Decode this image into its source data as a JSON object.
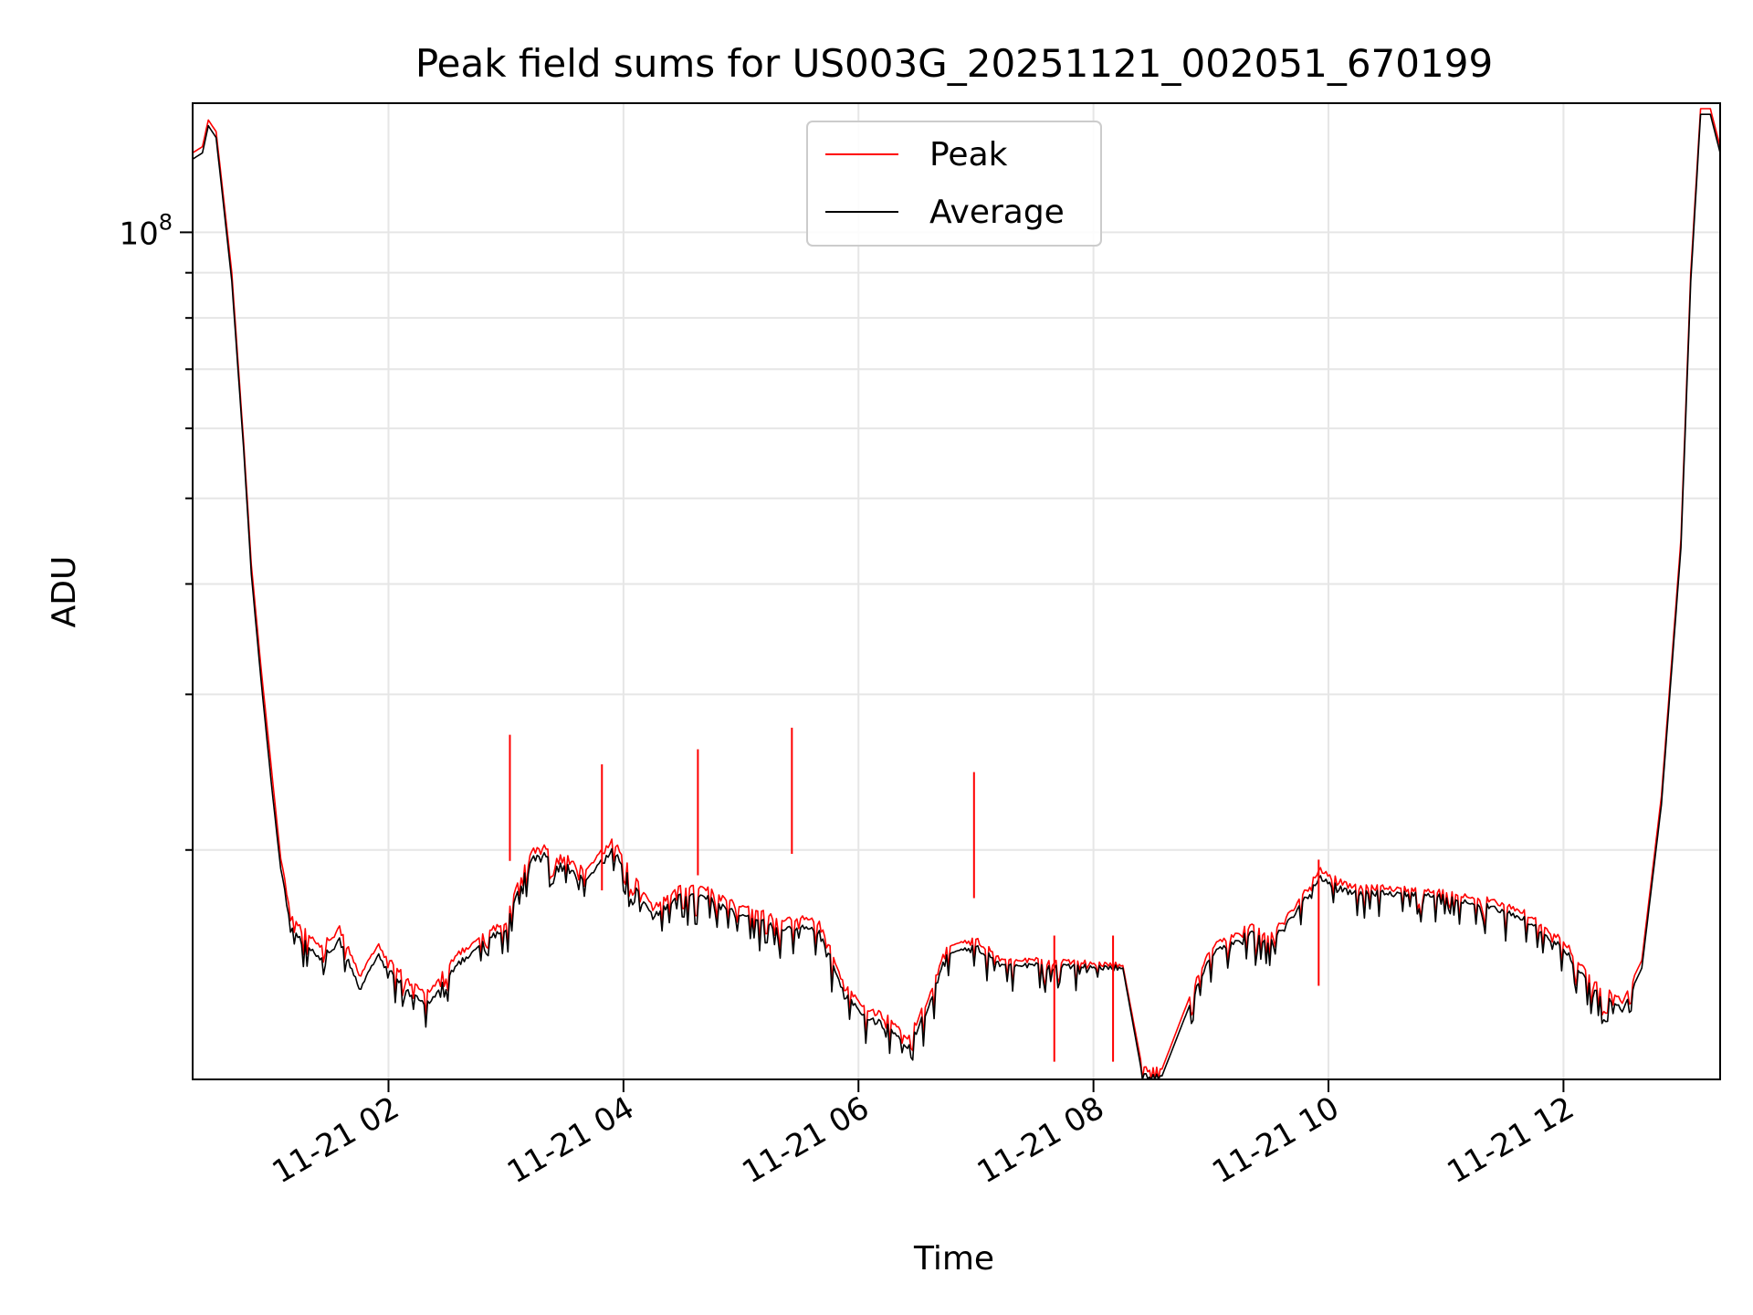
{
  "chart_data": {
    "type": "line",
    "title": "Peak field sums for US003G_20251121_002051_670199",
    "xlabel": "Time",
    "ylabel": "ADU",
    "yscale": "log",
    "xlim": [
      "2025-11-21 00:20",
      "2025-11-21 13:20"
    ],
    "ylim": [
      11000000,
      140000000
    ],
    "x_ticks": [
      {
        "value": "2025-11-21 02:00",
        "label": "11-21 02"
      },
      {
        "value": "2025-11-21 04:00",
        "label": "11-21 04"
      },
      {
        "value": "2025-11-21 06:00",
        "label": "11-21 06"
      },
      {
        "value": "2025-11-21 08:00",
        "label": "11-21 08"
      },
      {
        "value": "2025-11-21 10:00",
        "label": "11-21 10"
      },
      {
        "value": "2025-11-21 12:00",
        "label": "11-21 12"
      }
    ],
    "y_ticks": [
      {
        "value": 100000000,
        "base": "10",
        "exponent": "8"
      }
    ],
    "y_minor_ticks": [
      20000000,
      30000000,
      40000000,
      50000000,
      60000000,
      70000000,
      80000000,
      90000000
    ],
    "grid": true,
    "legend_position": "top-center",
    "series": [
      {
        "name": "Peak",
        "color": "#ff0000",
        "points": [
          [
            "2025-11-21 00:20",
            123000000
          ],
          [
            "2025-11-21 00:25",
            125000000
          ],
          [
            "2025-11-21 00:28",
            134000000
          ],
          [
            "2025-11-21 00:32",
            130000000
          ],
          [
            "2025-11-21 00:40",
            90000000
          ],
          [
            "2025-11-21 00:46",
            58000000
          ],
          [
            "2025-11-21 00:50",
            42000000
          ],
          [
            "2025-11-21 00:55",
            32000000
          ],
          [
            "2025-11-21 01:00",
            25000000
          ],
          [
            "2025-11-21 01:05",
            19500000
          ],
          [
            "2025-11-21 01:10",
            17000000
          ],
          [
            "2025-11-21 01:25",
            15500000
          ],
          [
            "2025-11-21 01:35",
            16300000
          ],
          [
            "2025-11-21 01:45",
            14500000
          ],
          [
            "2025-11-21 01:55",
            15600000
          ],
          [
            "2025-11-21 02:10",
            14200000
          ],
          [
            "2025-11-21 02:20",
            13800000
          ],
          [
            "2025-11-21 02:35",
            15200000
          ],
          [
            "2025-11-21 02:50",
            16200000
          ],
          [
            "2025-11-21 03:00",
            16500000
          ],
          [
            "2025-11-21 03:05",
            18200000
          ],
          [
            "2025-11-21 03:15",
            20200000
          ],
          [
            "2025-11-21 03:25",
            20000000
          ],
          [
            "2025-11-21 03:40",
            19000000
          ],
          [
            "2025-11-21 03:55",
            20500000
          ],
          [
            "2025-11-21 04:00",
            19500000
          ],
          [
            "2025-11-21 04:15",
            17200000
          ],
          [
            "2025-11-21 04:30",
            18200000
          ],
          [
            "2025-11-21 04:45",
            18000000
          ],
          [
            "2025-11-21 05:00",
            17300000
          ],
          [
            "2025-11-21 05:20",
            16700000
          ],
          [
            "2025-11-21 05:40",
            16700000
          ],
          [
            "2025-11-21 05:50",
            14500000
          ],
          [
            "2025-11-21 06:00",
            13400000
          ],
          [
            "2025-11-21 06:15",
            12900000
          ],
          [
            "2025-11-21 06:25",
            12200000
          ],
          [
            "2025-11-21 06:35",
            13500000
          ],
          [
            "2025-11-21 06:45",
            15500000
          ],
          [
            "2025-11-21 07:00",
            15800000
          ],
          [
            "2025-11-21 07:15",
            15000000
          ],
          [
            "2025-11-21 07:40",
            15000000
          ],
          [
            "2025-11-21 08:15",
            14800000
          ],
          [
            "2025-11-21 08:25",
            11300000
          ],
          [
            "2025-11-21 08:35",
            11300000
          ],
          [
            "2025-11-21 08:50",
            13800000
          ],
          [
            "2025-11-21 09:00",
            15500000
          ],
          [
            "2025-11-21 09:20",
            16400000
          ],
          [
            "2025-11-21 09:30",
            16000000
          ],
          [
            "2025-11-21 09:45",
            17500000
          ],
          [
            "2025-11-21 09:55",
            19000000
          ],
          [
            "2025-11-21 10:10",
            18200000
          ],
          [
            "2025-11-21 10:50",
            18000000
          ],
          [
            "2025-11-21 11:20",
            17600000
          ],
          [
            "2025-11-21 11:40",
            17000000
          ],
          [
            "2025-11-21 12:00",
            15800000
          ],
          [
            "2025-11-21 12:15",
            14200000
          ],
          [
            "2025-11-21 12:30",
            13500000
          ],
          [
            "2025-11-21 12:40",
            15000000
          ],
          [
            "2025-11-21 12:50",
            23000000
          ],
          [
            "2025-11-21 13:00",
            45000000
          ],
          [
            "2025-11-21 13:05",
            90000000
          ],
          [
            "2025-11-21 13:10",
            138000000
          ],
          [
            "2025-11-21 13:15",
            138000000
          ],
          [
            "2025-11-21 13:20",
            125000000
          ]
        ]
      },
      {
        "name": "Average",
        "color": "#000000",
        "points": [
          [
            "2025-11-21 00:20",
            121000000
          ],
          [
            "2025-11-21 00:25",
            123000000
          ],
          [
            "2025-11-21 00:28",
            132000000
          ],
          [
            "2025-11-21 00:32",
            128000000
          ],
          [
            "2025-11-21 00:40",
            88000000
          ],
          [
            "2025-11-21 00:46",
            57000000
          ],
          [
            "2025-11-21 00:50",
            41000000
          ],
          [
            "2025-11-21 00:55",
            31000000
          ],
          [
            "2025-11-21 01:00",
            24000000
          ],
          [
            "2025-11-21 01:05",
            19000000
          ],
          [
            "2025-11-21 01:10",
            16500000
          ],
          [
            "2025-11-21 01:25",
            15000000
          ],
          [
            "2025-11-21 01:35",
            15800000
          ],
          [
            "2025-11-21 01:45",
            14000000
          ],
          [
            "2025-11-21 01:55",
            15200000
          ],
          [
            "2025-11-21 02:10",
            13800000
          ],
          [
            "2025-11-21 02:20",
            13400000
          ],
          [
            "2025-11-21 02:35",
            14800000
          ],
          [
            "2025-11-21 02:50",
            15900000
          ],
          [
            "2025-11-21 03:00",
            16200000
          ],
          [
            "2025-11-21 03:05",
            17800000
          ],
          [
            "2025-11-21 03:15",
            19800000
          ],
          [
            "2025-11-21 03:25",
            19600000
          ],
          [
            "2025-11-21 03:40",
            18500000
          ],
          [
            "2025-11-21 03:55",
            20000000
          ],
          [
            "2025-11-21 04:00",
            19000000
          ],
          [
            "2025-11-21 04:15",
            16800000
          ],
          [
            "2025-11-21 04:30",
            17800000
          ],
          [
            "2025-11-21 04:45",
            17600000
          ],
          [
            "2025-11-21 05:00",
            16900000
          ],
          [
            "2025-11-21 05:20",
            16300000
          ],
          [
            "2025-11-21 05:40",
            16300000
          ],
          [
            "2025-11-21 05:50",
            14200000
          ],
          [
            "2025-11-21 06:00",
            13100000
          ],
          [
            "2025-11-21 06:15",
            12600000
          ],
          [
            "2025-11-21 06:25",
            11900000
          ],
          [
            "2025-11-21 06:35",
            13200000
          ],
          [
            "2025-11-21 06:45",
            15200000
          ],
          [
            "2025-11-21 07:00",
            15500000
          ],
          [
            "2025-11-21 07:15",
            14800000
          ],
          [
            "2025-11-21 07:40",
            14800000
          ],
          [
            "2025-11-21 08:15",
            14700000
          ],
          [
            "2025-11-21 08:25",
            11100000
          ],
          [
            "2025-11-21 08:35",
            11100000
          ],
          [
            "2025-11-21 08:50",
            13500000
          ],
          [
            "2025-11-21 09:00",
            15200000
          ],
          [
            "2025-11-21 09:20",
            16100000
          ],
          [
            "2025-11-21 09:30",
            15700000
          ],
          [
            "2025-11-21 09:45",
            17200000
          ],
          [
            "2025-11-21 09:55",
            18600000
          ],
          [
            "2025-11-21 10:10",
            17900000
          ],
          [
            "2025-11-21 10:50",
            17800000
          ],
          [
            "2025-11-21 11:20",
            17300000
          ],
          [
            "2025-11-21 11:40",
            16700000
          ],
          [
            "2025-11-21 12:00",
            15500000
          ],
          [
            "2025-11-21 12:15",
            13900000
          ],
          [
            "2025-11-21 12:30",
            13200000
          ],
          [
            "2025-11-21 12:40",
            14700000
          ],
          [
            "2025-11-21 12:50",
            22500000
          ],
          [
            "2025-11-21 13:00",
            44000000
          ],
          [
            "2025-11-21 13:05",
            88000000
          ],
          [
            "2025-11-21 13:10",
            136000000
          ],
          [
            "2025-11-21 13:15",
            136000000
          ],
          [
            "2025-11-21 13:20",
            123000000
          ]
        ]
      }
    ],
    "peak_spikes": [
      [
        "2025-11-21 03:02",
        27000000
      ],
      [
        "2025-11-21 03:49",
        25000000
      ],
      [
        "2025-11-21 04:38",
        26000000
      ],
      [
        "2025-11-21 05:26",
        27500000
      ],
      [
        "2025-11-21 06:59",
        24500000
      ],
      [
        "2025-11-21 09:55",
        19500000
      ],
      [
        "2025-11-21 08:10",
        16000000
      ],
      [
        "2025-11-21 07:40",
        16000000
      ]
    ]
  }
}
